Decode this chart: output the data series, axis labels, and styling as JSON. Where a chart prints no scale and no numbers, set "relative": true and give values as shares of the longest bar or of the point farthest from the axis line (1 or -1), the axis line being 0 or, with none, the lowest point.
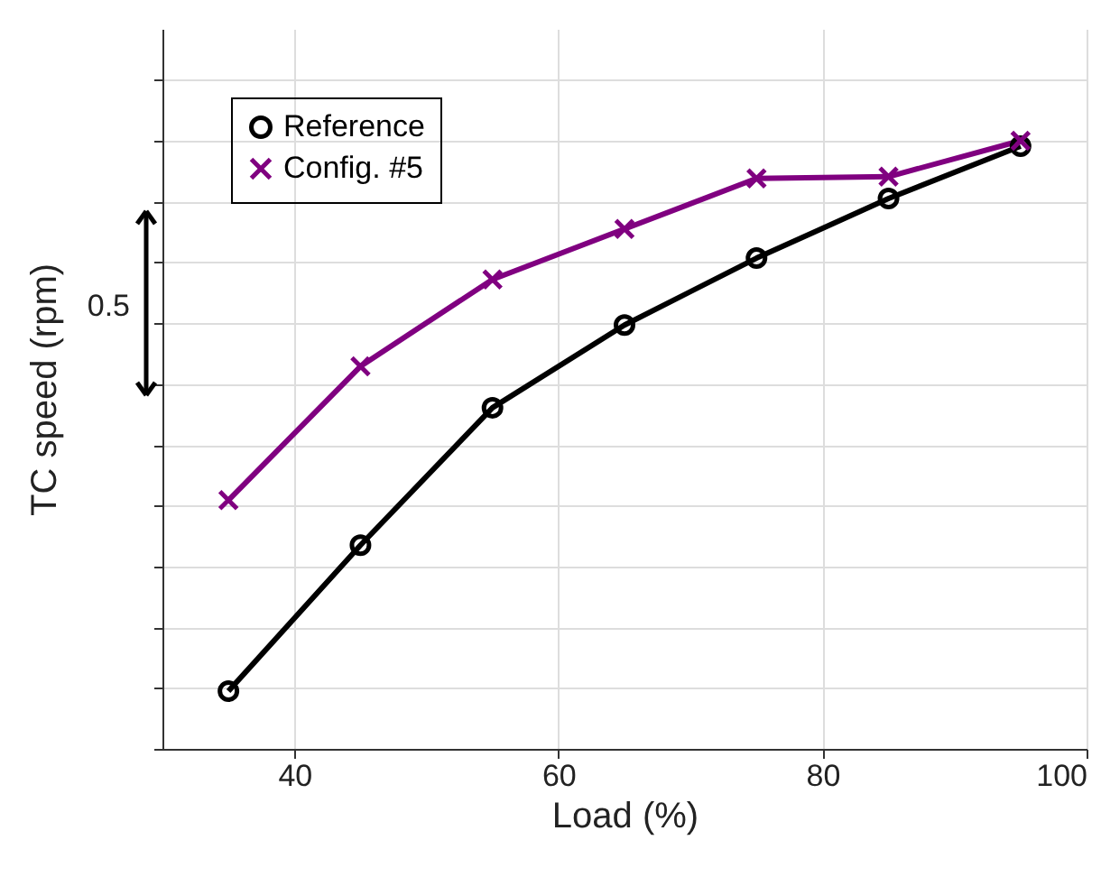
{
  "chart_data": {
    "type": "line",
    "xlabel": "Load (%)",
    "ylabel": "TC speed (rpm)",
    "relative": true,
    "x": [
      35,
      45,
      55,
      65,
      75,
      85,
      95
    ],
    "xlim": [
      30,
      100
    ],
    "xticks": [
      40,
      60,
      80,
      100
    ],
    "series": [
      {
        "name": "Reference",
        "color": "#000000",
        "marker": "circle",
        "values": [
          0.095,
          0.335,
          0.561,
          0.697,
          0.807,
          0.905,
          0.991
        ]
      },
      {
        "name": "Config. #5",
        "color": "#800080",
        "marker": "cross",
        "values": [
          0.409,
          0.629,
          0.772,
          0.855,
          0.938,
          0.941,
          1.0
        ]
      }
    ],
    "annotations": [
      "0.5"
    ],
    "grid": true,
    "legend": "top left",
    "tick_labels": "x",
    "line_style": "solid"
  }
}
